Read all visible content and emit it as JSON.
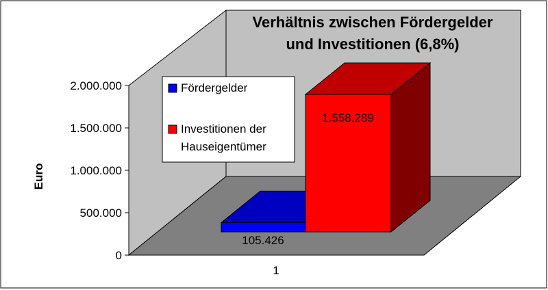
{
  "chart_data": {
    "type": "bar",
    "title_lines": [
      "Verhältnis zwischen Fördergelder",
      "und Investitionen (6,8%)"
    ],
    "ylabel": "Euro",
    "xlabel": "",
    "categories": [
      "1"
    ],
    "ylim": [
      0,
      2000000
    ],
    "yticks": [
      0,
      500000,
      1000000,
      1500000,
      2000000
    ],
    "ytick_labels": [
      "0",
      "500.000",
      "1.000.000",
      "1.500.000",
      "2.000.000"
    ],
    "series": [
      {
        "name": "Fördergelder",
        "values": [
          105426
        ],
        "value_label": "105.426",
        "color": "#0000ff",
        "side_color": "#000080",
        "top_color": "#0000c0"
      },
      {
        "name": "Investitionen der Hauseigentümer",
        "name_lines": [
          "Investitionen der",
          "Hauseigentümer"
        ],
        "values": [
          1558289
        ],
        "value_label": "1.558.289",
        "color": "#ff0000",
        "side_color": "#800000",
        "top_color": "#c00000"
      }
    ],
    "grid": false,
    "legend_position": "upper-left",
    "style": "3d"
  }
}
